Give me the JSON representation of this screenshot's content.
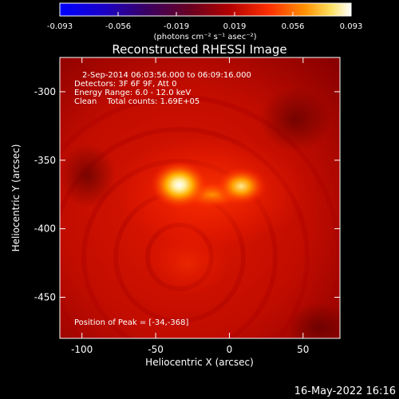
{
  "colorbar": {
    "ticks": [
      "-0.093",
      "-0.056",
      "-0.019",
      "0.019",
      "0.056",
      "0.093"
    ],
    "unit_label": "(photons cm⁻² s⁻¹ asec⁻²)"
  },
  "plot": {
    "title": "Reconstructed RHESSI Image",
    "info_lines": [
      "2-Sep-2014 06:03:56.000 to 06:09:16.000",
      "Detectors: 3F 6F 9F, Att 0",
      "Energy Range: 6.0 - 12.0 keV",
      "Clean    Total counts: 1.69E+05"
    ],
    "peak_text": "Position of Peak = [-34,-368]",
    "xlabel": "Heliocentric X (arcsec)",
    "ylabel": "Heliocentric Y (arcsec)",
    "xticks": [
      "-100",
      "-50",
      "0",
      "50"
    ],
    "yticks": [
      "-300",
      "-350",
      "-400",
      "-450"
    ]
  },
  "footer": {
    "timestamp": "16-May-2022 16:16"
  },
  "image_data": {
    "type": "heatmap",
    "x_range": [
      -115,
      75
    ],
    "y_range": [
      -480,
      -275
    ],
    "sources": [
      {
        "x": -34,
        "y": -368
      },
      {
        "x": 8,
        "y": -369
      }
    ]
  }
}
